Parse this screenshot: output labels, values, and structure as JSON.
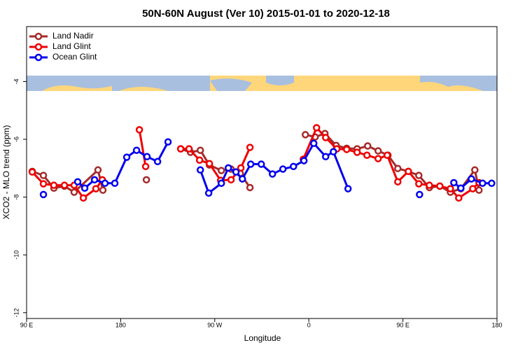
{
  "chart_data": {
    "type": "line",
    "title": "50N-60N August (Ver 10)   2015-01-01 to 2020-12-18",
    "x_label": "Longitude",
    "y_label": "XCO2 - MLO trend (ppm)",
    "xlim": [
      90,
      540
    ],
    "ylim": [
      -12.2,
      -2.1
    ],
    "xticks": [
      {
        "value": 90,
        "label": "90 E"
      },
      180,
      {
        "value": 270,
        "label": "90 W"
      },
      {
        "value": 360,
        "label": "0"
      },
      {
        "value": 450,
        "label": "90 E"
      },
      {
        "value": 540,
        "label": "180"
      }
    ],
    "yticks": [
      -4,
      -6,
      -8,
      -10,
      -12
    ],
    "legend": "upper-left",
    "series": [
      {
        "name": "Land Nadir",
        "color": "#a52a2a",
        "x": [
          95.4,
          106.1,
          116.1,
          126.2,
          135.5,
          158.3,
          163,
          null,
          204.6,
          null,
          237.4,
          246.8,
          256.2,
          264.9,
          276.3,
          285.6,
          294.4,
          303.7,
          null,
          356.7,
          366,
          375.4,
          386.1,
          396.2,
          406.2,
          416.3,
          426.3,
          435.7,
          445.1,
          455.2,
          465.2,
          475.3,
          485.3,
          495.4,
          505.4,
          518.8,
          522.8
        ],
        "values": [
          -7.11,
          -7.25,
          -7.69,
          -7.62,
          -7.83,
          -7.06,
          -7.76,
          null,
          -7.4,
          null,
          -6.33,
          -6.45,
          -6.38,
          -6.89,
          -7.08,
          -7.03,
          -7.18,
          -7.67,
          null,
          -5.84,
          -5.92,
          -5.8,
          -6.21,
          -6.31,
          -6.33,
          -6.23,
          -6.4,
          -6.55,
          -7.01,
          -7.11,
          -7.25,
          -7.67,
          -7.62,
          -7.83,
          -7.71,
          -7.06,
          -7.76
        ]
      },
      {
        "name": "Land Glint",
        "color": "#ee0000",
        "x": [
          95.4,
          106.1,
          116.1,
          126.2,
          135.5,
          144.3,
          156.3,
          162.4,
          null,
          197.9,
          203.9,
          null,
          237.4,
          245.4,
          255.5,
          264.9,
          275.6,
          285.6,
          295,
          303.7,
          null,
          354.7,
          367.4,
          376.1,
          386.8,
          396.2,
          406.2,
          415.6,
          426.3,
          435,
          445.1,
          455.2,
          465.2,
          475.3,
          485.3,
          495.4,
          503.4,
          516.8,
          522.8
        ],
        "values": [
          -7.13,
          -7.54,
          -7.59,
          -7.59,
          -7.59,
          -8.03,
          -7.71,
          -7.4,
          null,
          -5.67,
          -6.94,
          null,
          -6.33,
          -6.33,
          -6.72,
          -6.84,
          -7.42,
          -7.4,
          -6.99,
          -6.28,
          null,
          -6.69,
          -5.6,
          -5.94,
          -6.33,
          -6.35,
          -6.45,
          -6.55,
          -6.67,
          -6.55,
          -7.47,
          -7.11,
          -7.54,
          -7.59,
          -7.62,
          -7.71,
          -8.03,
          -7.71,
          -7.5
        ]
      },
      {
        "name": "Ocean Glint",
        "color": "#0000ee",
        "x": [
          106.1,
          null,
          138.9,
          145.6,
          155,
          165,
          174.4,
          185.8,
          195.2,
          205.2,
          215.3,
          225.3,
          null,
          256.2,
          264.2,
          276.3,
          283,
          290.3,
          296.4,
          304.4,
          314.5,
          325.2,
          335.2,
          345.3,
          355.3,
          364.7,
          376.1,
          383.5,
          397.5,
          null,
          465.9,
          null,
          498.7,
          505.4,
          515.5,
          526.2,
          534.9
        ],
        "values": [
          -7.91,
          null,
          -7.47,
          -7.69,
          -7.4,
          -7.52,
          -7.52,
          -6.62,
          -6.38,
          -6.6,
          -6.77,
          -6.09,
          null,
          -7.06,
          -7.86,
          -7.52,
          -6.99,
          -7.13,
          -7.37,
          -6.86,
          -6.86,
          -7.2,
          -7.03,
          -6.94,
          -6.74,
          -6.14,
          -6.6,
          -6.43,
          -7.71,
          null,
          -7.91,
          null,
          -7.5,
          -7.69,
          -7.37,
          -7.52,
          -7.52
        ]
      }
    ]
  }
}
